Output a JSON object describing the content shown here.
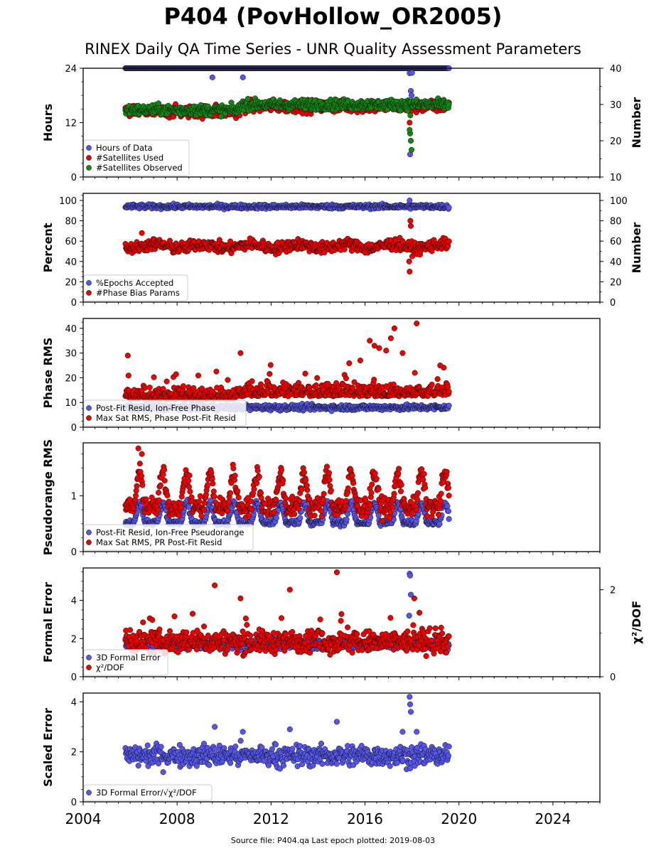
{
  "header": {
    "title": "P404 (PovHollow_OR2005)",
    "subtitle": "RINEX Daily QA Time Series - UNR Quality Assessment Parameters"
  },
  "footer": {
    "text": "Source file: P404.qa Last epoch plotted: 2019-08-03"
  },
  "colors": {
    "blue": "#5555ee",
    "red": "#ee0000",
    "green": "#118811",
    "edge": "#111111"
  },
  "chart_data": [
    {
      "type": "scatter",
      "xlim": [
        2004,
        2026
      ],
      "ylabel": "Hours",
      "ylim": [
        0,
        24
      ],
      "yticks": [
        0,
        12,
        24
      ],
      "y2label": "Number",
      "y2lim": [
        10,
        40
      ],
      "y2ticks": [
        10,
        20,
        30,
        40
      ],
      "legend_placement": "lower-left",
      "series": [
        {
          "name": "Hours of Data",
          "color": "blue",
          "axis": "left",
          "generator": "constant",
          "base": 24,
          "noise": 0,
          "outliers": [
            [
              2009.5,
              22
            ],
            [
              2010.8,
              22
            ],
            [
              2017.9,
              22.9
            ],
            [
              2017.95,
              19
            ],
            [
              2017.98,
              18
            ],
            [
              2017.92,
              5
            ],
            [
              2018.0,
              23
            ]
          ]
        },
        {
          "name": "#Satellites Used",
          "color": "red",
          "axis": "right",
          "generator": "sat",
          "base": 28,
          "noise": 1.2,
          "outliers": [
            [
              2009.65,
              30
            ],
            [
              2017.9,
              25
            ],
            [
              2017.95,
              28
            ]
          ]
        },
        {
          "name": "#Satellites Observed",
          "color": "green",
          "axis": "right",
          "generator": "sat",
          "base": 28.5,
          "noise": 1.0,
          "outliers": [
            [
              2017.92,
              22
            ],
            [
              2017.95,
              20
            ],
            [
              2017.9,
              23
            ],
            [
              2017.98,
              17.5
            ],
            [
              2017.93,
              27
            ]
          ]
        }
      ]
    },
    {
      "type": "scatter",
      "xlim": [
        2004,
        2026
      ],
      "ylabel": "Percent",
      "ylim": [
        0,
        107
      ],
      "yticks": [
        0,
        20,
        40,
        60,
        80,
        100
      ],
      "y2label": "Number",
      "y2lim": [
        0,
        107
      ],
      "y2ticks": [
        0,
        20,
        40,
        60,
        80,
        100
      ],
      "legend_placement": "lower-left",
      "series": [
        {
          "name": "%Epochs Accepted",
          "color": "blue",
          "axis": "left",
          "generator": "constant",
          "base": 94,
          "noise": 1.5,
          "outliers": [
            [
              2017.9,
              100
            ]
          ]
        },
        {
          "name": "#Phase Bias Params",
          "color": "red",
          "axis": "right",
          "generator": "bias",
          "base": 55,
          "noise": 4,
          "outliers": [
            [
              2017.9,
              30
            ],
            [
              2017.88,
              40
            ],
            [
              2017.93,
              80
            ],
            [
              2017.95,
              75
            ],
            [
              2006.5,
              68
            ]
          ]
        }
      ]
    },
    {
      "type": "scatter",
      "xlim": [
        2004,
        2026
      ],
      "ylabel": "Phase RMS",
      "ylim": [
        0,
        44
      ],
      "yticks": [
        0,
        10,
        20,
        30,
        40
      ],
      "legend_placement": "lower-left",
      "series": [
        {
          "name": "Post-Fit Resid, Ion-Free Phase",
          "color": "blue",
          "axis": "left",
          "generator": "constant",
          "base": 8,
          "noise": 0.8,
          "outliers": []
        },
        {
          "name": "Max Sat RMS, Phase Post-Fit Resid",
          "color": "red",
          "axis": "left",
          "generator": "phase",
          "base": 11,
          "noise": 2.5,
          "outliers": [
            [
              2005.9,
              29
            ],
            [
              2010.7,
              30
            ],
            [
              2015.8,
              27
            ],
            [
              2016.2,
              35
            ],
            [
              2016.4,
              33
            ],
            [
              2016.6,
              32
            ],
            [
              2016.9,
              31
            ],
            [
              2017.1,
              36
            ],
            [
              2017.25,
              40
            ],
            [
              2017.6,
              30
            ],
            [
              2018.2,
              42
            ],
            [
              2019.2,
              25
            ]
          ]
        }
      ]
    },
    {
      "type": "scatter",
      "xlim": [
        2004,
        2026
      ],
      "ylabel": "Pseudorange RMS",
      "ylim": [
        0,
        1.95
      ],
      "yticks": [
        0,
        1
      ],
      "legend_placement": "lower-left",
      "series": [
        {
          "name": "Post-Fit Resid, Ion-Free Pseudorange",
          "color": "blue",
          "axis": "left",
          "generator": "seasonal",
          "base": 0.52,
          "amp": 0.35,
          "noise": 0.04,
          "outliers": []
        },
        {
          "name": "Max Sat RMS, PR Post-Fit Resid",
          "color": "red",
          "axis": "left",
          "generator": "seasonal",
          "base": 0.8,
          "amp": 0.6,
          "noise": 0.12,
          "outliers": [
            [
              2006.35,
              1.85
            ],
            [
              2006.5,
              1.75
            ]
          ]
        }
      ]
    },
    {
      "type": "scatter",
      "xlim": [
        2004,
        2026
      ],
      "ylabel": "Formal Error",
      "ylim": [
        0,
        5.7
      ],
      "yticks": [
        0,
        2,
        4
      ],
      "y2label": "χ²/DOF",
      "y2lim": [
        0,
        2.5
      ],
      "y2ticks": [
        0,
        2
      ],
      "legend_placement": "lower-left",
      "series": [
        {
          "name": "3D Formal Error",
          "color": "blue",
          "axis": "left",
          "generator": "constant",
          "base": 1.7,
          "noise": 0.2,
          "outliers": [
            [
              2017.9,
              5.4
            ],
            [
              2017.92,
              5.3
            ],
            [
              2017.95,
              4.3
            ],
            [
              2017.88,
              3.2
            ]
          ]
        },
        {
          "name": "χ²/DOF",
          "color": "red",
          "axis": "right",
          "generator": "chi",
          "base": 0.8,
          "noise": 0.18,
          "outliers": [
            [
              2009.6,
              2.1
            ],
            [
              2010.7,
              1.8
            ],
            [
              2012.8,
              2.0
            ],
            [
              2014.8,
              2.4
            ],
            [
              2018.1,
              1.8
            ]
          ]
        }
      ]
    },
    {
      "type": "scatter",
      "xlim": [
        2004,
        2026
      ],
      "ylabel": "Scaled Error",
      "ylim": [
        0,
        4.35
      ],
      "yticks": [
        0,
        2,
        4
      ],
      "xticks": [
        2004,
        2008,
        2012,
        2016,
        2020,
        2024
      ],
      "legend_placement": "lower-left",
      "series": [
        {
          "name": "3D Formal Error/√χ²/DOF",
          "color": "blue",
          "axis": "left",
          "generator": "constant",
          "base": 1.85,
          "noise": 0.3,
          "outliers": [
            [
              2009.6,
              3.0
            ],
            [
              2010.8,
              2.8
            ],
            [
              2012.8,
              2.9
            ],
            [
              2014.8,
              3.2
            ],
            [
              2017.9,
              4.2
            ],
            [
              2017.92,
              3.9
            ],
            [
              2017.95,
              3.6
            ],
            [
              2017.6,
              2.8
            ],
            [
              2018.2,
              2.8
            ]
          ]
        }
      ]
    }
  ],
  "data_span": {
    "start": 2005.8,
    "end": 2019.59
  }
}
